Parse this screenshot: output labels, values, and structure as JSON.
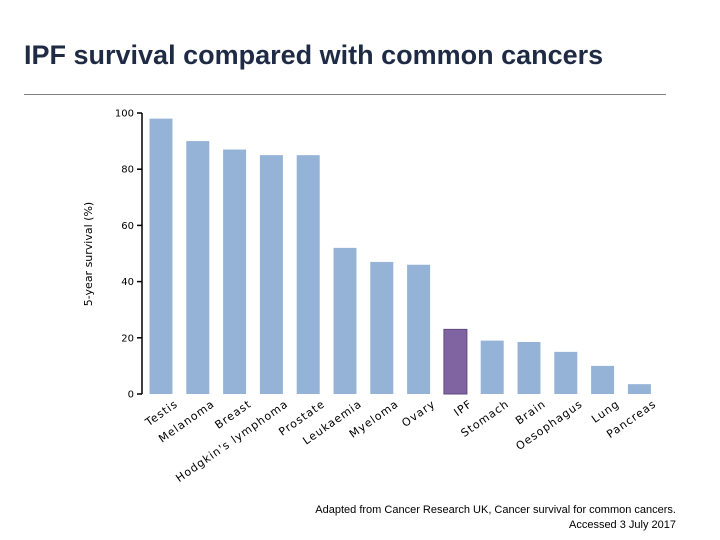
{
  "slide": {
    "title": "IPF survival compared with common cancers",
    "source_line1": "Adapted from Cancer Research UK, Cancer survival for common cancers.",
    "source_line2": "Accessed 3 July 2017"
  },
  "colors": {
    "bar": "#95b3d7",
    "highlight": "#8064a2",
    "axis": "#000000",
    "title": "#1f2a44"
  },
  "chart_data": {
    "type": "bar",
    "title": "",
    "xlabel": "",
    "ylabel": "5-year survival (%)",
    "ylim": [
      0,
      100
    ],
    "yticks": [
      0,
      20,
      40,
      60,
      80,
      100
    ],
    "grid": false,
    "categories": [
      "Testis",
      "Melanoma",
      "Breast",
      "Hodgkin's lymphoma",
      "Prostate",
      "Leukaemia",
      "Myeloma",
      "Ovary",
      "IPF",
      "Stomach",
      "Brain",
      "Oesophagus",
      "Lung",
      "Pancreas"
    ],
    "values": [
      98,
      90,
      87,
      85,
      85,
      52,
      47,
      46,
      23,
      19,
      18.5,
      15,
      10,
      3.5
    ],
    "highlight_category": "IPF"
  }
}
